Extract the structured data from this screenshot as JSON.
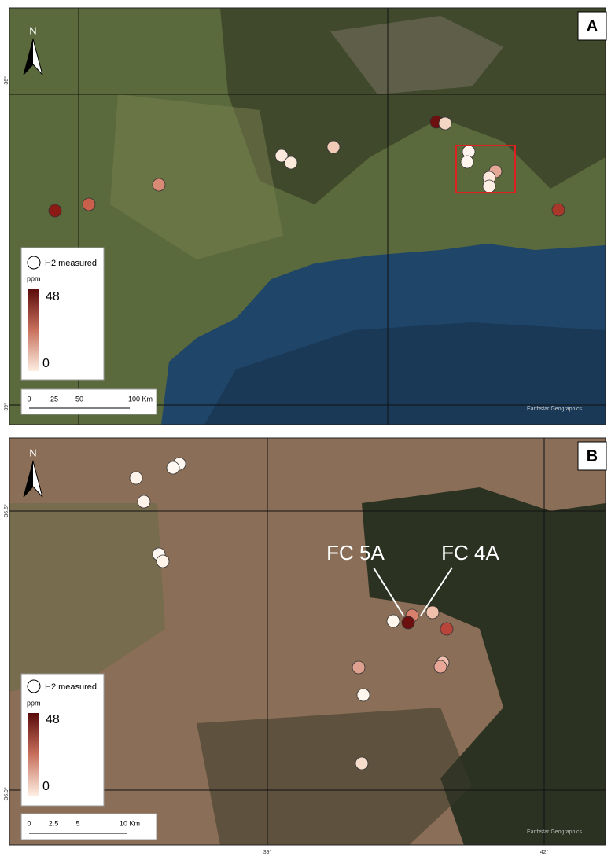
{
  "panels": [
    {
      "label": "A",
      "north": "N",
      "coordinates": [
        "-36°",
        "-39°"
      ],
      "legend": {
        "title": "H2 measured",
        "unit": "ppm",
        "max": "48",
        "min": "0"
      },
      "scale": [
        "0",
        "25",
        "50",
        "100 Km"
      ],
      "attribution": "Earthstar Geographics"
    },
    {
      "label": "B",
      "north": "N",
      "coordinates": [
        "-36.6°",
        "-36.9°",
        "39°",
        "42°"
      ],
      "legend": {
        "title": "H2 measured",
        "unit": "ppm",
        "max": "48",
        "min": "0"
      },
      "scale": [
        "0",
        "2.5",
        "5",
        "10 Km"
      ],
      "attribution": "Earthstar Geographics",
      "annotations": [
        "FC 5A",
        "FC 4A"
      ]
    }
  ]
}
